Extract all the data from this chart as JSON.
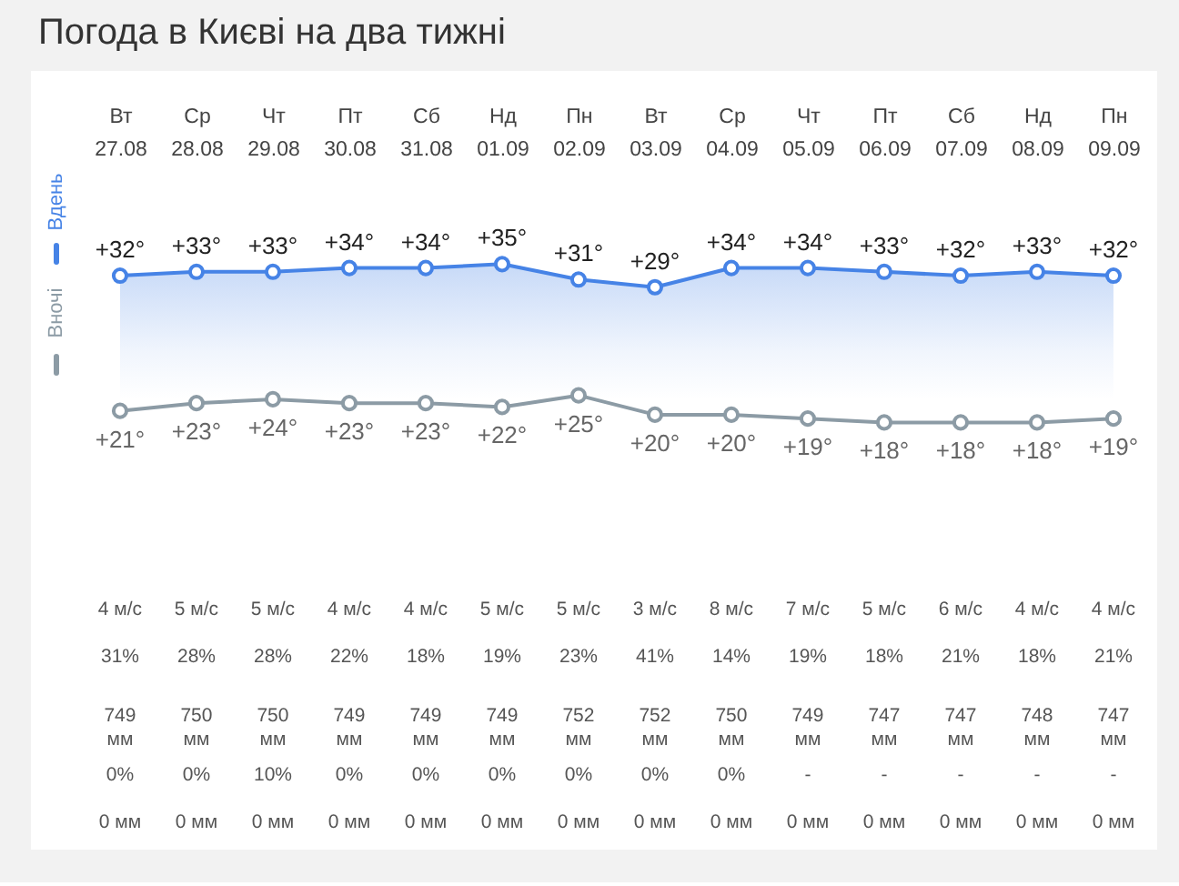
{
  "chart_data": {
    "type": "line",
    "title": "Погода в Києві на два тижні",
    "categories": [
      "Вт 27.08",
      "Ср 28.08",
      "Чт 29.08",
      "Пт 30.08",
      "Сб 31.08",
      "Нд 01.09",
      "Пн 02.09",
      "Вт 03.09",
      "Ср 04.09",
      "Чт 05.09",
      "Пт 06.09",
      "Сб 07.09",
      "Нд 08.09",
      "Пн 09.09"
    ],
    "series": [
      {
        "name": "Вдень",
        "type": "area",
        "color": "#4683e6",
        "values": [
          32,
          33,
          33,
          34,
          34,
          35,
          31,
          29,
          34,
          34,
          33,
          32,
          33,
          32
        ],
        "value_labels": [
          "+32°",
          "+33°",
          "+33°",
          "+34°",
          "+34°",
          "+35°",
          "+31°",
          "+29°",
          "+34°",
          "+34°",
          "+33°",
          "+32°",
          "+33°",
          "+32°"
        ]
      },
      {
        "name": "Вночі",
        "type": "line",
        "axis": "y2",
        "color": "#8c9ba5",
        "values": [
          21,
          23,
          24,
          23,
          23,
          22,
          25,
          20,
          20,
          19,
          18,
          18,
          18,
          19
        ],
        "value_labels": [
          "+21°",
          "+23°",
          "+24°",
          "+23°",
          "+23°",
          "+22°",
          "+25°",
          "+20°",
          "+20°",
          "+19°",
          "+18°",
          "+18°",
          "+18°",
          "+19°"
        ]
      }
    ],
    "ylim": [
      -45,
      85
    ],
    "y2lim": [
      -21,
      109
    ],
    "marker": "circle",
    "legend": "left",
    "tick_labels": "x",
    "annotations": [
      "4 м/с",
      "5 м/с",
      "5 м/с",
      "4 м/с",
      "4 м/с",
      "5 м/с",
      "5 м/с",
      "3 м/с",
      "8 м/с",
      "7 м/с",
      "5 м/с",
      "6 м/с",
      "4 м/с",
      "4 м/с",
      "31%",
      "28%",
      "28%",
      "22%",
      "18%",
      "19%",
      "23%",
      "41%",
      "14%",
      "19%",
      "18%",
      "21%",
      "18%",
      "21%",
      "749\nмм",
      "750\nмм",
      "750\nмм",
      "749\nмм",
      "749\nмм",
      "749\nмм",
      "752\nмм",
      "752\nмм",
      "750\nмм",
      "749\nмм",
      "747\nмм",
      "747\nмм",
      "748\nмм",
      "747\nмм",
      "0%",
      "0%",
      "10%",
      "0%",
      "0%",
      "0%",
      "0%",
      "0%",
      "0%",
      "-",
      "-",
      "-",
      "-",
      "-",
      "0 мм",
      "0 мм",
      "0 мм",
      "0 мм",
      "0 мм",
      "0 мм",
      "0 мм",
      "0 мм",
      "0 мм",
      "0 мм",
      "0 мм",
      "0 мм",
      "0 мм",
      "0 мм"
    ]
  }
}
